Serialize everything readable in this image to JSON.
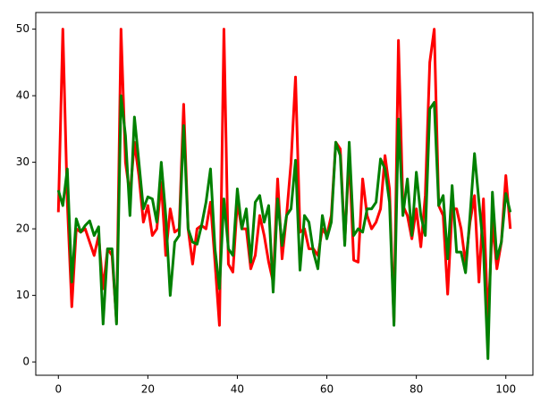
{
  "chart_data": {
    "type": "line",
    "x": [
      0,
      1,
      2,
      3,
      4,
      5,
      6,
      7,
      8,
      9,
      10,
      11,
      12,
      13,
      14,
      15,
      16,
      17,
      18,
      19,
      20,
      21,
      22,
      23,
      24,
      25,
      26,
      27,
      28,
      29,
      30,
      31,
      32,
      33,
      34,
      35,
      36,
      37,
      38,
      39,
      40,
      41,
      42,
      43,
      44,
      45,
      46,
      47,
      48,
      49,
      50,
      51,
      52,
      53,
      54,
      55,
      56,
      57,
      58,
      59,
      60,
      61,
      62,
      63,
      64,
      65,
      66,
      67,
      68,
      69,
      70,
      71,
      72,
      73,
      74,
      75,
      76,
      77,
      78,
      79,
      80,
      81,
      82,
      83,
      84,
      85,
      86,
      87,
      88,
      89,
      90,
      91,
      92,
      93,
      94,
      95,
      96,
      97,
      98,
      99,
      100,
      101
    ],
    "series": [
      {
        "color": "#ff0000",
        "values": [
          22.5,
          50,
          24,
          8.3,
          20,
          19.5,
          20,
          18,
          16,
          19,
          11,
          17,
          16,
          6,
          50,
          30,
          25,
          33,
          28,
          21,
          23.5,
          19,
          20,
          27,
          16,
          23,
          19.5,
          20,
          38.7,
          20,
          14.7,
          20,
          20.5,
          20,
          24,
          15,
          5.5,
          50,
          14.7,
          13.5,
          24,
          20,
          20,
          14,
          16,
          22,
          19,
          15,
          12,
          27.5,
          15.5,
          22,
          30,
          42.8,
          19.5,
          20,
          17,
          17,
          16,
          20,
          19,
          22,
          33,
          32,
          18,
          31,
          15.3,
          15,
          27.5,
          22,
          20,
          21,
          23,
          31,
          26,
          6,
          48.3,
          23.5,
          22,
          18.5,
          23,
          17.3,
          25,
          45,
          50,
          23.5,
          22,
          10.2,
          23,
          23,
          20,
          14.8,
          21,
          25,
          12,
          24.5,
          6,
          21,
          14,
          18,
          28,
          20
        ]
      },
      {
        "color": "#008000",
        "values": [
          25.8,
          23.5,
          29,
          12,
          21.5,
          19.5,
          20.5,
          21.2,
          19,
          20.3,
          5.7,
          17,
          17,
          5.7,
          40,
          34,
          22,
          36.8,
          30,
          23,
          24.8,
          24.5,
          21,
          30,
          22,
          10,
          18,
          19,
          35.5,
          20,
          18,
          17.7,
          20.5,
          24,
          29,
          17,
          11,
          24.5,
          17,
          16,
          26,
          20,
          23,
          15,
          24,
          25,
          21,
          23.5,
          10.5,
          24.5,
          17.5,
          22,
          23,
          30.3,
          13.8,
          22,
          21,
          16.5,
          14,
          22,
          18.5,
          21,
          33,
          31,
          17.5,
          33,
          19,
          20,
          19.5,
          23,
          23,
          24,
          30.5,
          29,
          24,
          5.5,
          36.5,
          22,
          27.5,
          19,
          28.5,
          22,
          19,
          38,
          39,
          23.5,
          25,
          15.5,
          26.5,
          16.5,
          16.5,
          13.4,
          22,
          31.3,
          24,
          17,
          0.5,
          25.5,
          15.5,
          18,
          25.3,
          22.5
        ]
      }
    ],
    "xlim": [
      -5.05,
      106.05
    ],
    "ylim": [
      -2,
      52.5
    ],
    "xticks": [
      0,
      20,
      40,
      60,
      80,
      100
    ],
    "yticks": [
      0,
      10,
      20,
      30,
      40,
      50
    ]
  }
}
